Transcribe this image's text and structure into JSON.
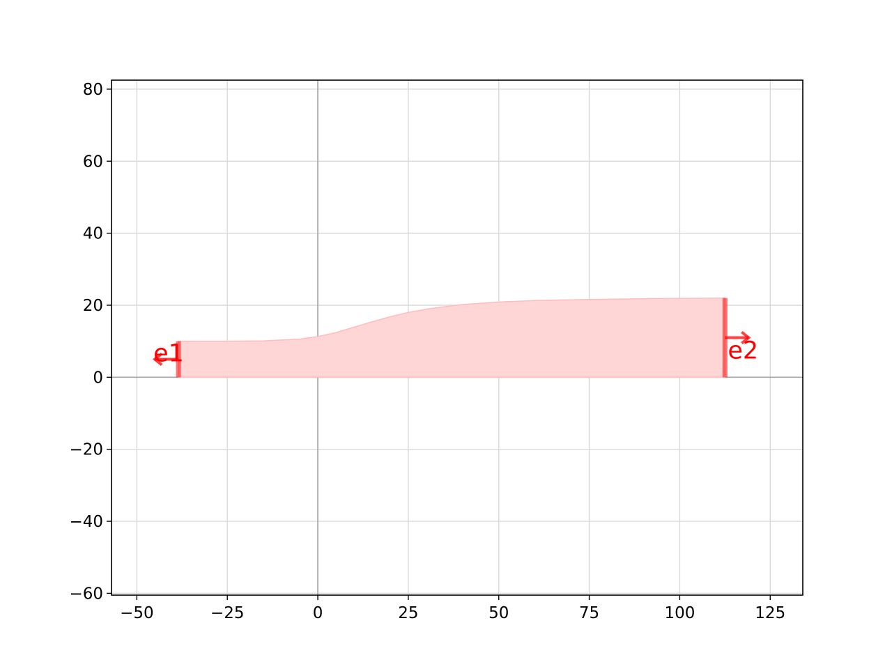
{
  "chart_data": {
    "type": "area",
    "title": "",
    "xlabel": "",
    "ylabel": "",
    "xlim": [
      -57,
      134
    ],
    "ylim": [
      -60.5,
      82.5
    ],
    "x_ticks": [
      -50,
      -25,
      0,
      25,
      50,
      75,
      100,
      125
    ],
    "y_ticks": [
      -60,
      -40,
      -20,
      0,
      20,
      40,
      60,
      80
    ],
    "x_tick_labels": [
      "−50",
      "−25",
      "0",
      "25",
      "50",
      "75",
      "100",
      "125"
    ],
    "y_tick_labels": [
      "−60",
      "−40",
      "−20",
      "0",
      "20",
      "40",
      "60",
      "80"
    ],
    "grid": true,
    "legend": "none",
    "fill_color": "#ffd6d6",
    "edge_color": "#ffbcbc",
    "port_color": "#ff0000",
    "series": [
      {
        "x": [
          -38.5,
          -25,
          -15,
          -5,
          0,
          5,
          10,
          15,
          20,
          25,
          30,
          35,
          40,
          50,
          60,
          75,
          90,
          100,
          112.5
        ],
        "y": [
          10,
          10,
          10.1,
          10.6,
          11.3,
          12.4,
          13.9,
          15.4,
          16.8,
          18,
          18.9,
          19.6,
          20.2,
          20.9,
          21.3,
          21.6,
          21.8,
          21.9,
          22
        ],
        "baseline": 0
      }
    ],
    "ports": [
      {
        "name": "e1",
        "x": -38.5,
        "y": 5.0,
        "width": 10,
        "direction": "left"
      },
      {
        "name": "e2",
        "x": 112.5,
        "y": 11.0,
        "width": 22,
        "direction": "right"
      }
    ]
  }
}
